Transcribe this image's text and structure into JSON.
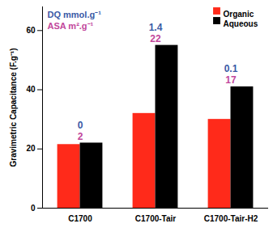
{
  "chart_data": {
    "type": "bar",
    "y_label": "Gravimetric Capacitance (F.g⁻¹)",
    "categories": [
      "C1700",
      "C1700-Tair",
      "C1700-Tair-H2"
    ],
    "series": [
      {
        "name": "Organic",
        "color": "#ff2a1a",
        "values": [
          21.5,
          32,
          30
        ]
      },
      {
        "name": "Aqueous",
        "color": "#000000",
        "values": [
          22,
          55,
          41
        ]
      }
    ],
    "annotation_series": [
      {
        "name": "DQ mmol.g⁻¹",
        "color": "#3a5aa6",
        "values": [
          0,
          1.4,
          0.1
        ]
      },
      {
        "name": "ASA m².g⁻¹",
        "color": "#c2479b",
        "values": [
          2,
          22,
          17
        ]
      }
    ],
    "ylim": [
      0,
      68
    ],
    "yticks": [
      0,
      20,
      40,
      60
    ],
    "legend": "top-right",
    "grid": false
  }
}
